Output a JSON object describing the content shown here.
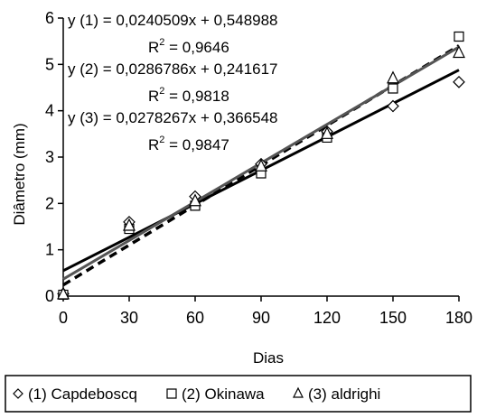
{
  "chart_data": {
    "type": "scatter",
    "xlabel": "Dias",
    "ylabel": "Diâmetro (mm)",
    "xlim": [
      0,
      180
    ],
    "ylim": [
      0,
      6
    ],
    "xticks": [
      "0",
      "30",
      "60",
      "90",
      "120",
      "150",
      "180"
    ],
    "yticks": [
      "0",
      "1",
      "2",
      "3",
      "4",
      "5",
      "6"
    ],
    "grid": false,
    "legend_position": "bottom",
    "series": [
      {
        "name": "(1) Capdeboscq",
        "marker": "diamond",
        "x": [
          0,
          30,
          60,
          90,
          120,
          150,
          180
        ],
        "y": [
          0.05,
          1.6,
          2.15,
          2.85,
          3.55,
          4.1,
          4.62
        ],
        "trend": {
          "slope": 0.0240509,
          "intercept": 0.548988,
          "style": "solid",
          "color": "#000000"
        },
        "equation": "y (1) = 0,0240509x + 0,548988",
        "r2_label": "R",
        "r2_exp": "2",
        "r2_value": " = 0,9646"
      },
      {
        "name": "(2) Okinawa",
        "marker": "square",
        "x": [
          0,
          30,
          60,
          90,
          120,
          150,
          180
        ],
        "y": [
          0.03,
          1.45,
          1.95,
          2.65,
          3.42,
          4.48,
          5.6
        ],
        "trend": {
          "slope": 0.0286786,
          "intercept": 0.241617,
          "style": "dashed",
          "color": "#000000"
        },
        "equation": "y (2) =  0,0286786x + 0,241617",
        "r2_label": "R",
        "r2_exp": "2",
        "r2_value": " = 0,9818"
      },
      {
        "name": "(3) aldrighi",
        "marker": "triangle",
        "x": [
          0,
          30,
          60,
          90,
          120,
          150,
          180
        ],
        "y": [
          0.04,
          1.52,
          2.05,
          2.8,
          3.5,
          4.7,
          5.25
        ],
        "trend": {
          "slope": 0.0278267,
          "intercept": 0.366548,
          "style": "solid",
          "color": "#555555"
        },
        "equation": "y (3) = 0,0278267x + 0,366548",
        "r2_label": "R",
        "r2_exp": "2",
        "r2_value": " = 0,9847"
      }
    ]
  }
}
